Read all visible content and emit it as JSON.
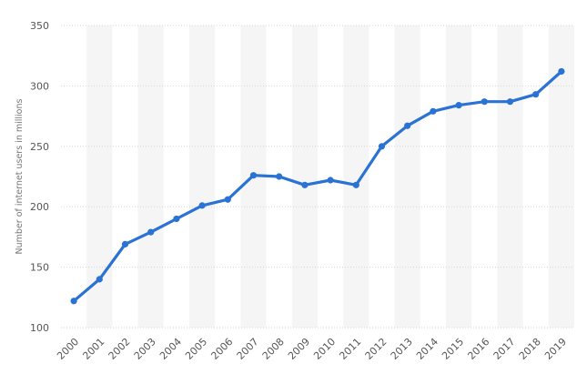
{
  "chart_data": {
    "type": "line",
    "title": "",
    "xlabel": "",
    "ylabel": "Number of internet users in millions",
    "x": [
      "2000",
      "2001",
      "2002",
      "2003",
      "2004",
      "2005",
      "2006",
      "2007",
      "2008",
      "2009",
      "2010",
      "2011",
      "2012",
      "2013",
      "2014",
      "2015",
      "2016",
      "2017",
      "2018",
      "2019"
    ],
    "series": [
      {
        "values": [
          122,
          140,
          169,
          179,
          190,
          201,
          206,
          226,
          225,
          218,
          222,
          218,
          250,
          267,
          279,
          284,
          287,
          287,
          293,
          312
        ]
      }
    ],
    "ylim": [
      100,
      350
    ],
    "yticks": [
      100,
      150,
      200,
      250,
      300,
      350
    ],
    "grid": true,
    "legend": "none",
    "colors": {
      "line": "#2a72d3",
      "grid": "#d6d6d6",
      "band": "#f5f5f5"
    }
  }
}
